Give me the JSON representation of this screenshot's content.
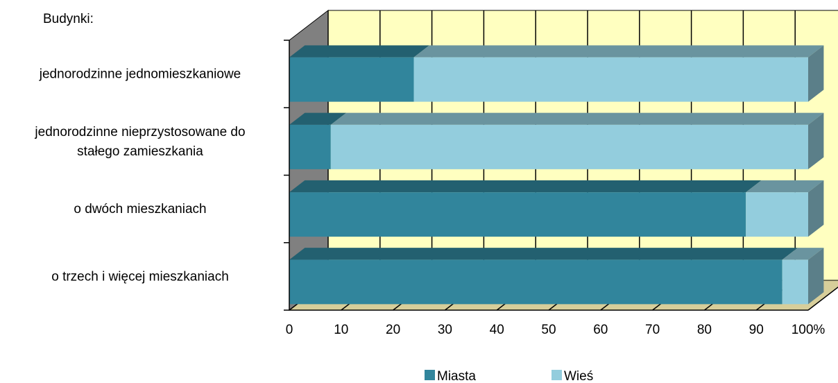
{
  "chart_data": {
    "type": "bar",
    "orientation": "horizontal",
    "stacked": true,
    "stack_mode": "percent",
    "three_d": true,
    "category_axis_title": "Budynki:",
    "categories": [
      [
        "jednorodzinne jednomieszkaniowe"
      ],
      [
        "jednorodzinne nieprzystosowane do",
        "stałego zamieszkania"
      ],
      [
        "o dwóch mieszkaniach"
      ],
      [
        "o trzech i więcej mieszkaniach"
      ]
    ],
    "series": [
      {
        "name": "Miasta",
        "values": [
          24,
          8,
          88,
          95
        ],
        "color": "#31859c"
      },
      {
        "name": "Wieś",
        "values": [
          76,
          92,
          12,
          5
        ],
        "color": "#93cddd"
      }
    ],
    "xlim": [
      0,
      100
    ],
    "xticks": [
      "0",
      "10",
      "20",
      "30",
      "40",
      "50",
      "60",
      "70",
      "80",
      "90",
      "100%"
    ],
    "grid": true,
    "wall_color": "#ffffc0",
    "floor_color": "#d7ce9a",
    "side_wall_color": "#808080",
    "legend_position": "bottom"
  }
}
